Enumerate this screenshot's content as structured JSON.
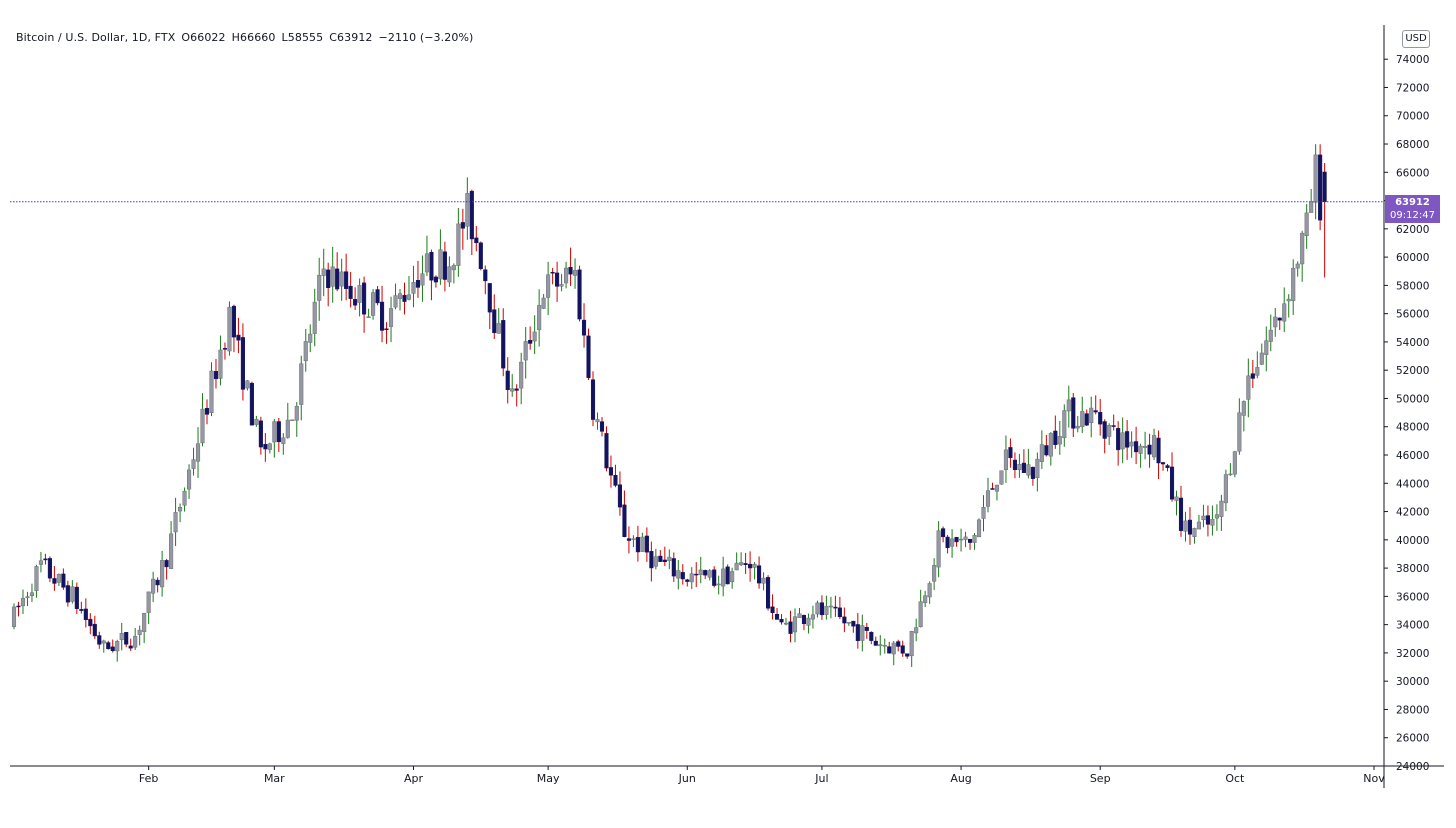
{
  "legend": {
    "symbol": "Bitcoin / U.S. Dollar, 1D, FTX",
    "open": "O66022",
    "high": "H66660",
    "low": "L58555",
    "close": "C63912",
    "change": "−2110 (−3.20%)"
  },
  "currency": "USD",
  "last_price": {
    "price": "63912",
    "countdown": "09:12:47"
  },
  "colors": {
    "up_body": "#9598a1",
    "down_body": "#131460",
    "up_wick": "#1b7a1b",
    "down_wick": "#d00000",
    "price_line": "#3b3bd1",
    "price_tag": "#7e57c2",
    "axis": "#131722"
  },
  "chart_data": {
    "type": "candlestick",
    "x_ticks": [
      "Feb",
      "Mar",
      "Apr",
      "May",
      "Jun",
      "Jul",
      "Aug",
      "Sep",
      "Oct",
      "Nov"
    ],
    "y_ticks": [
      24000,
      26000,
      28000,
      30000,
      32000,
      34000,
      36000,
      38000,
      40000,
      42000,
      44000,
      46000,
      48000,
      50000,
      52000,
      54000,
      56000,
      58000,
      60000,
      62000,
      64000,
      66000,
      68000,
      70000,
      72000,
      74000
    ],
    "ylim": [
      24000,
      75500
    ],
    "x_range": [
      "2021-01-02",
      "2021-11-01"
    ],
    "price_line": 63912,
    "weekly_closes": [
      [
        "2021-01-02",
        34000
      ],
      [
        "2021-01-09",
        38200
      ],
      [
        "2021-01-16",
        36000
      ],
      [
        "2021-01-23",
        32300
      ],
      [
        "2021-01-30",
        33200
      ],
      [
        "2021-02-06",
        38900
      ],
      [
        "2021-02-13",
        47200
      ],
      [
        "2021-02-20",
        55900
      ],
      [
        "2021-02-27",
        46200
      ],
      [
        "2021-03-06",
        48900
      ],
      [
        "2021-03-13",
        59200
      ],
      [
        "2021-03-20",
        57400
      ],
      [
        "2021-03-27",
        55800
      ],
      [
        "2021-04-03",
        58900
      ],
      [
        "2021-04-10",
        59800
      ],
      [
        "2021-04-14",
        63200
      ],
      [
        "2021-04-17",
        60200
      ],
      [
        "2021-04-24",
        49900
      ],
      [
        "2021-05-01",
        57800
      ],
      [
        "2021-05-08",
        58800
      ],
      [
        "2021-05-12",
        49500
      ],
      [
        "2021-05-19",
        40600
      ],
      [
        "2021-05-26",
        38500
      ],
      [
        "2021-06-02",
        37400
      ],
      [
        "2021-06-09",
        37200
      ],
      [
        "2021-06-16",
        38600
      ],
      [
        "2021-06-23",
        33700
      ],
      [
        "2021-06-30",
        35100
      ],
      [
        "2021-07-07",
        34200
      ],
      [
        "2021-07-14",
        32800
      ],
      [
        "2021-07-21",
        32200
      ],
      [
        "2021-07-28",
        39900
      ],
      [
        "2021-08-04",
        39700
      ],
      [
        "2021-08-11",
        45500
      ],
      [
        "2021-08-18",
        44900
      ],
      [
        "2021-08-25",
        48900
      ],
      [
        "2021-09-01",
        48800
      ],
      [
        "2021-09-07",
        46900
      ],
      [
        "2021-09-14",
        46900
      ],
      [
        "2021-09-21",
        40600
      ],
      [
        "2021-09-28",
        41200
      ],
      [
        "2021-10-05",
        51500
      ],
      [
        "2021-10-12",
        56000
      ],
      [
        "2021-10-18",
        62000
      ],
      [
        "2021-10-20",
        66022
      ],
      [
        "2021-10-21",
        63912
      ]
    ],
    "last_candle": {
      "date": "2021-10-21",
      "open": 66022,
      "high": 66660,
      "low": 58555,
      "close": 63912
    }
  }
}
